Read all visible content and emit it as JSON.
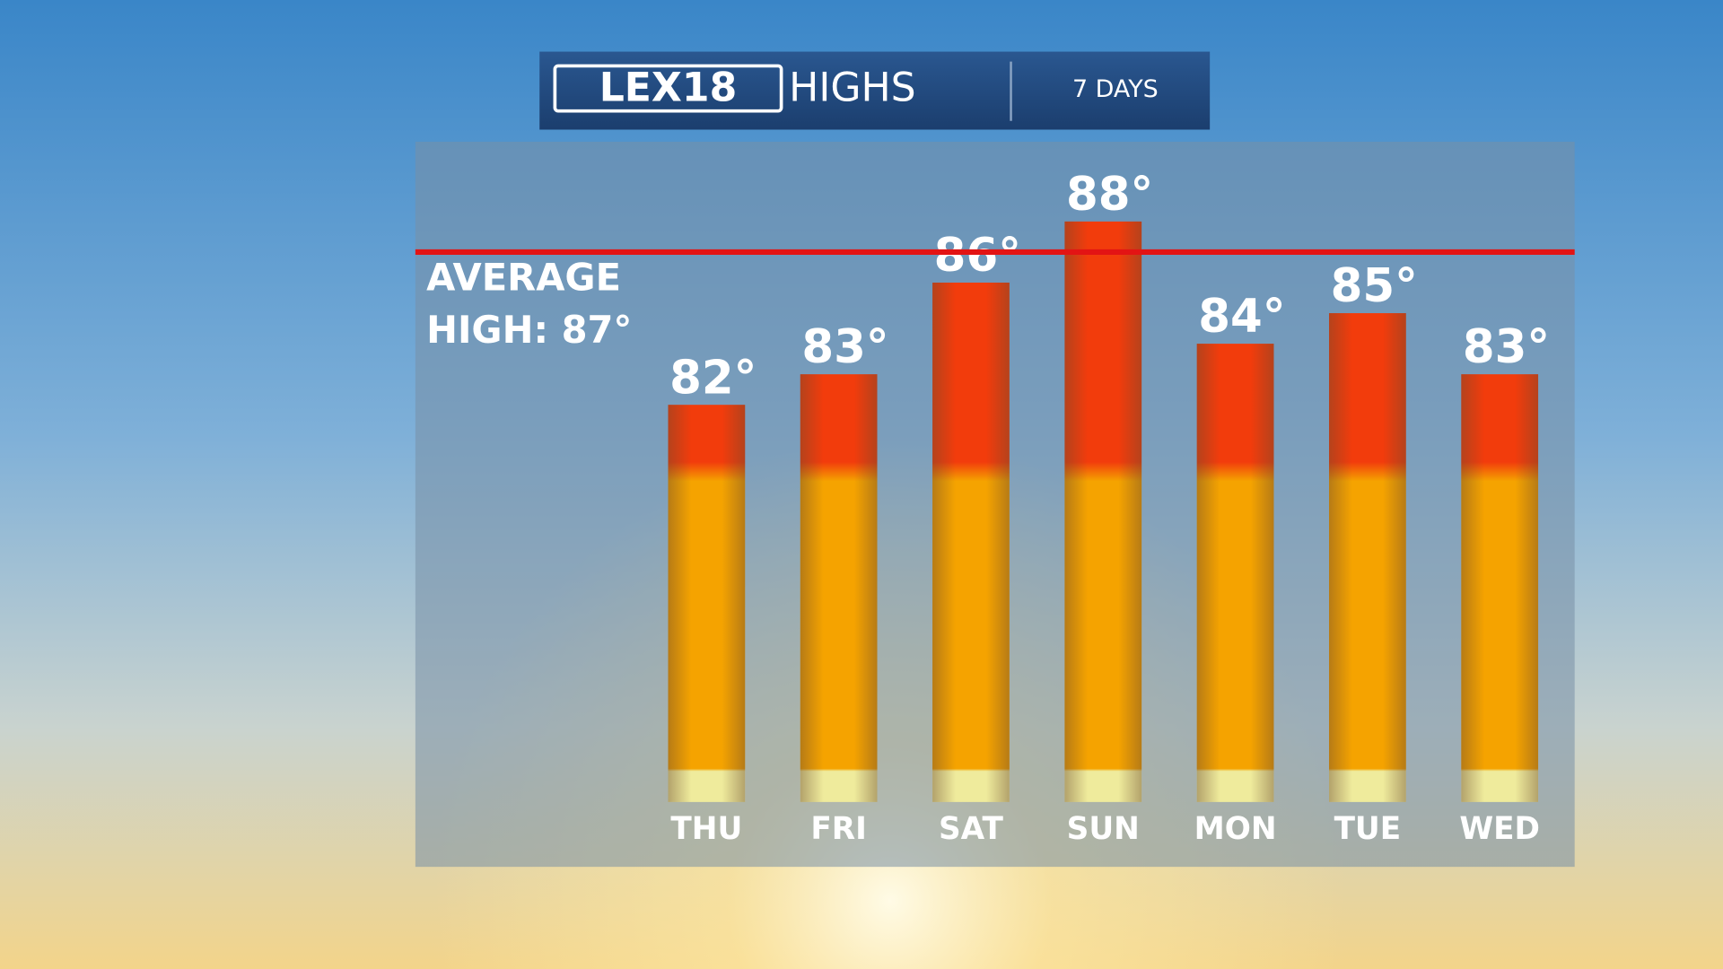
{
  "logo": "LEX18",
  "chart_data": {
    "type": "bar",
    "title": "HIGHS",
    "subtitle": "7 DAYS",
    "categories": [
      "THU",
      "FRI",
      "SAT",
      "SUN",
      "MON",
      "TUE",
      "WED"
    ],
    "values": [
      82,
      83,
      86,
      88,
      84,
      85,
      83
    ],
    "value_labels": [
      "82°",
      "83°",
      "86°",
      "88°",
      "84°",
      "85°",
      "83°"
    ],
    "average": 87,
    "average_label": "AVERAGE HIGH: 87°",
    "average_color": "#e31414",
    "colors": [
      "#f23c0c",
      "#f5a300",
      "#efeb9c"
    ],
    "ylim": [
      69,
      90
    ]
  }
}
